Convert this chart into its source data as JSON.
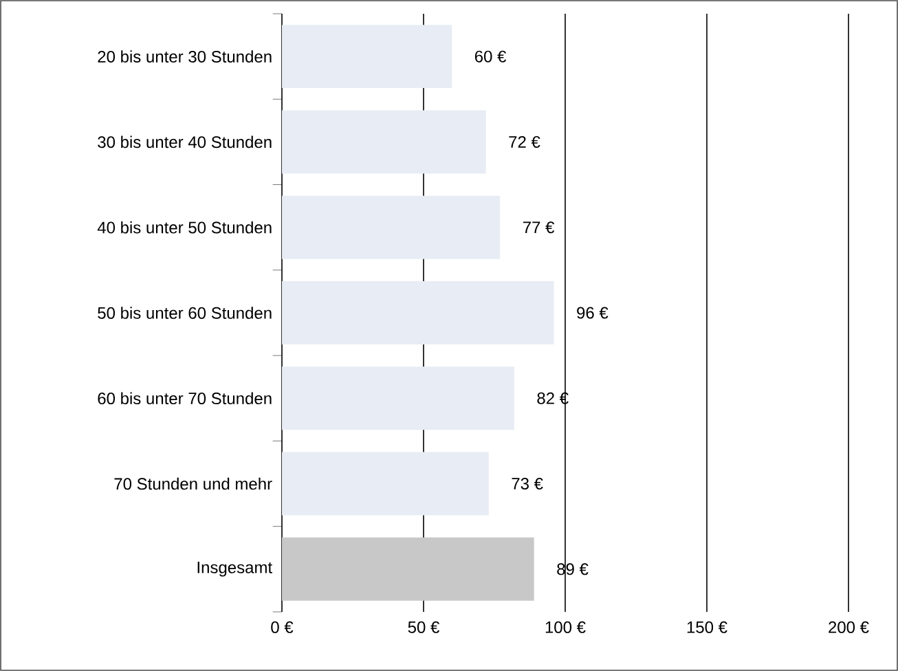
{
  "chart_data": {
    "type": "bar",
    "orientation": "horizontal",
    "categories": [
      "20 bis unter 30 Stunden",
      "30 bis unter 40 Stunden",
      "40 bis unter 50 Stunden",
      "50 bis unter 60 Stunden",
      "60 bis unter 70 Stunden",
      "70 Stunden und mehr",
      "Insgesamt"
    ],
    "values": [
      60,
      72,
      77,
      96,
      82,
      73,
      89
    ],
    "value_labels": [
      "60 €",
      "72 €",
      "77 €",
      "96 €",
      "82 €",
      "73 €",
      "89 €"
    ],
    "colors": [
      "#e8ecf4",
      "#e8ecf4",
      "#e8ecf4",
      "#e8ecf4",
      "#e8ecf4",
      "#e8ecf4",
      "#c8c8c8"
    ],
    "xlim": [
      0,
      200
    ],
    "xticks": [
      {
        "value": 0,
        "label": "0 €"
      },
      {
        "value": 50,
        "label": "50 €"
      },
      {
        "value": 100,
        "label": "100 €"
      },
      {
        "value": 150,
        "label": "150 €"
      },
      {
        "value": 200,
        "label": "200 €"
      }
    ],
    "grid": "x"
  }
}
